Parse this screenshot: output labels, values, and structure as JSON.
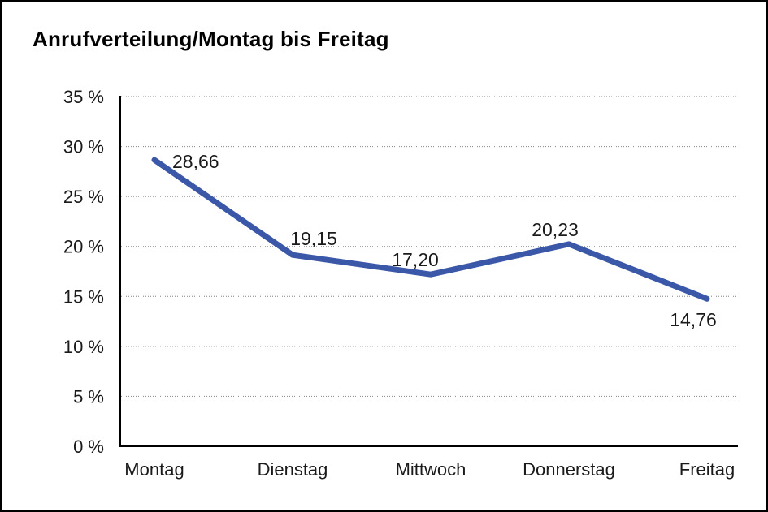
{
  "window": {
    "background": "#FFFFFF",
    "border_color": "#000000"
  },
  "chart_data": {
    "type": "line",
    "title": "Anrufverteilung/Montag bis Freitag",
    "categories": [
      "Montag",
      "Dienstag",
      "Mittwoch",
      "Donnerstag",
      "Freitag"
    ],
    "series": [
      {
        "values": [
          28.66,
          19.15,
          17.2,
          20.23,
          14.76
        ],
        "value_labels": [
          "28,66",
          "19,15",
          "17,20",
          "20,23",
          "14,76"
        ],
        "color": "#3A57A8",
        "line_width": 7
      }
    ],
    "xlabel": "",
    "ylabel": "",
    "ylim": [
      0,
      35
    ],
    "ytick_interval": 5,
    "ytick_labels": [
      "0 %",
      "5 %",
      "10 %",
      "15 %",
      "20 %",
      "25 %",
      "30 %",
      "35 %"
    ],
    "grid": {
      "horizontal": true,
      "vertical": false,
      "style": "dotted",
      "color": "#858585"
    },
    "legend": {
      "visible": false
    },
    "axis_color": "#000000",
    "text_color": "#1A1A1A"
  }
}
